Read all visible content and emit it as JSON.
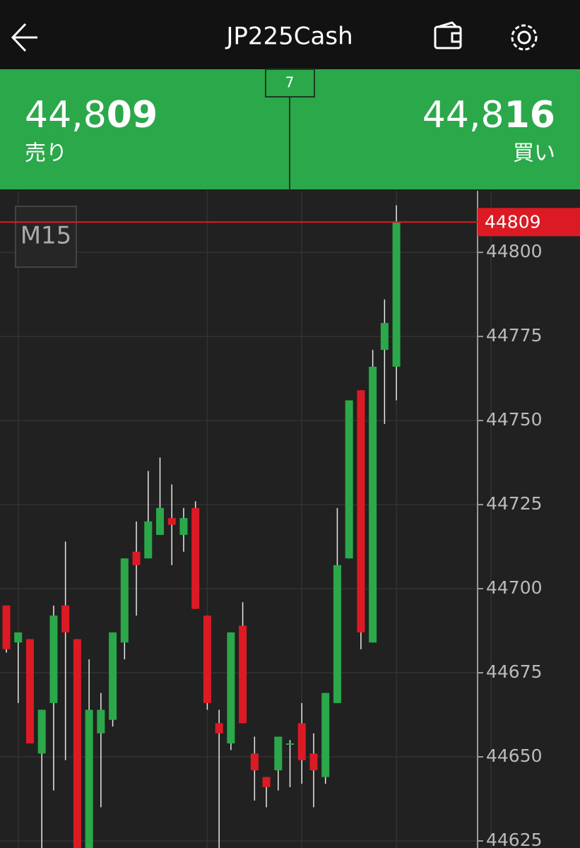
{
  "header": {
    "title": "JP225Cash"
  },
  "quote": {
    "sell": {
      "price_main": "44,8",
      "price_bold": "09",
      "label": "売り"
    },
    "buy": {
      "price_main": "44,8",
      "price_bold": "16",
      "label": "買い"
    },
    "spread": "7"
  },
  "chart_data": {
    "type": "candlestick",
    "timeframe": "M15",
    "up_color": "#2ba84a",
    "down_color": "#dc1a24",
    "ylim": [
      44622.9,
      44818.3
    ],
    "yticks": [
      44625,
      44650,
      44675,
      44700,
      44725,
      44750,
      44775,
      44800
    ],
    "grid": true,
    "current_price": 44809,
    "open": [
      44695,
      44684,
      44685,
      44651,
      44666,
      44695,
      44685,
      44620,
      44657,
      44661,
      44684,
      44711,
      44709,
      44716,
      44721,
      44716,
      44724,
      44692,
      44660,
      44654,
      44689,
      44651,
      44644,
      44646,
      44654,
      44660,
      44651,
      44644,
      44666,
      44709,
      44759,
      44684,
      44771,
      44766
    ],
    "high": [
      44695,
      44687,
      44685,
      44664,
      44695,
      44714,
      44685,
      44679,
      44669,
      44687,
      44709,
      44720,
      44735,
      44739,
      44731,
      44724,
      44726,
      44692,
      44664,
      44687,
      44696,
      44656,
      44644,
      44656,
      44655,
      44666,
      44657,
      44669,
      44724,
      44756,
      44759,
      44771,
      44786,
      44814
    ],
    "low": [
      44681,
      44666,
      44654,
      44620,
      44640,
      44649,
      44615,
      44615,
      44635,
      44659,
      44679,
      44692,
      44709,
      44716,
      44707,
      44711,
      44694,
      44664,
      44620,
      44652,
      44660,
      44637,
      44635,
      44640,
      44641,
      44642,
      44635,
      44642,
      44666,
      44709,
      44682,
      44684,
      44749,
      44756
    ],
    "close": [
      44682,
      44687,
      44654,
      44664,
      44692,
      44687,
      44620,
      44664,
      44664,
      44687,
      44709,
      44707,
      44720,
      44724,
      44719,
      44721,
      44694,
      44666,
      44657,
      44687,
      44660,
      44646,
      44641,
      44656,
      44654,
      44649,
      44646,
      44669,
      44707,
      44756,
      44687,
      44766,
      44779,
      44809
    ]
  }
}
